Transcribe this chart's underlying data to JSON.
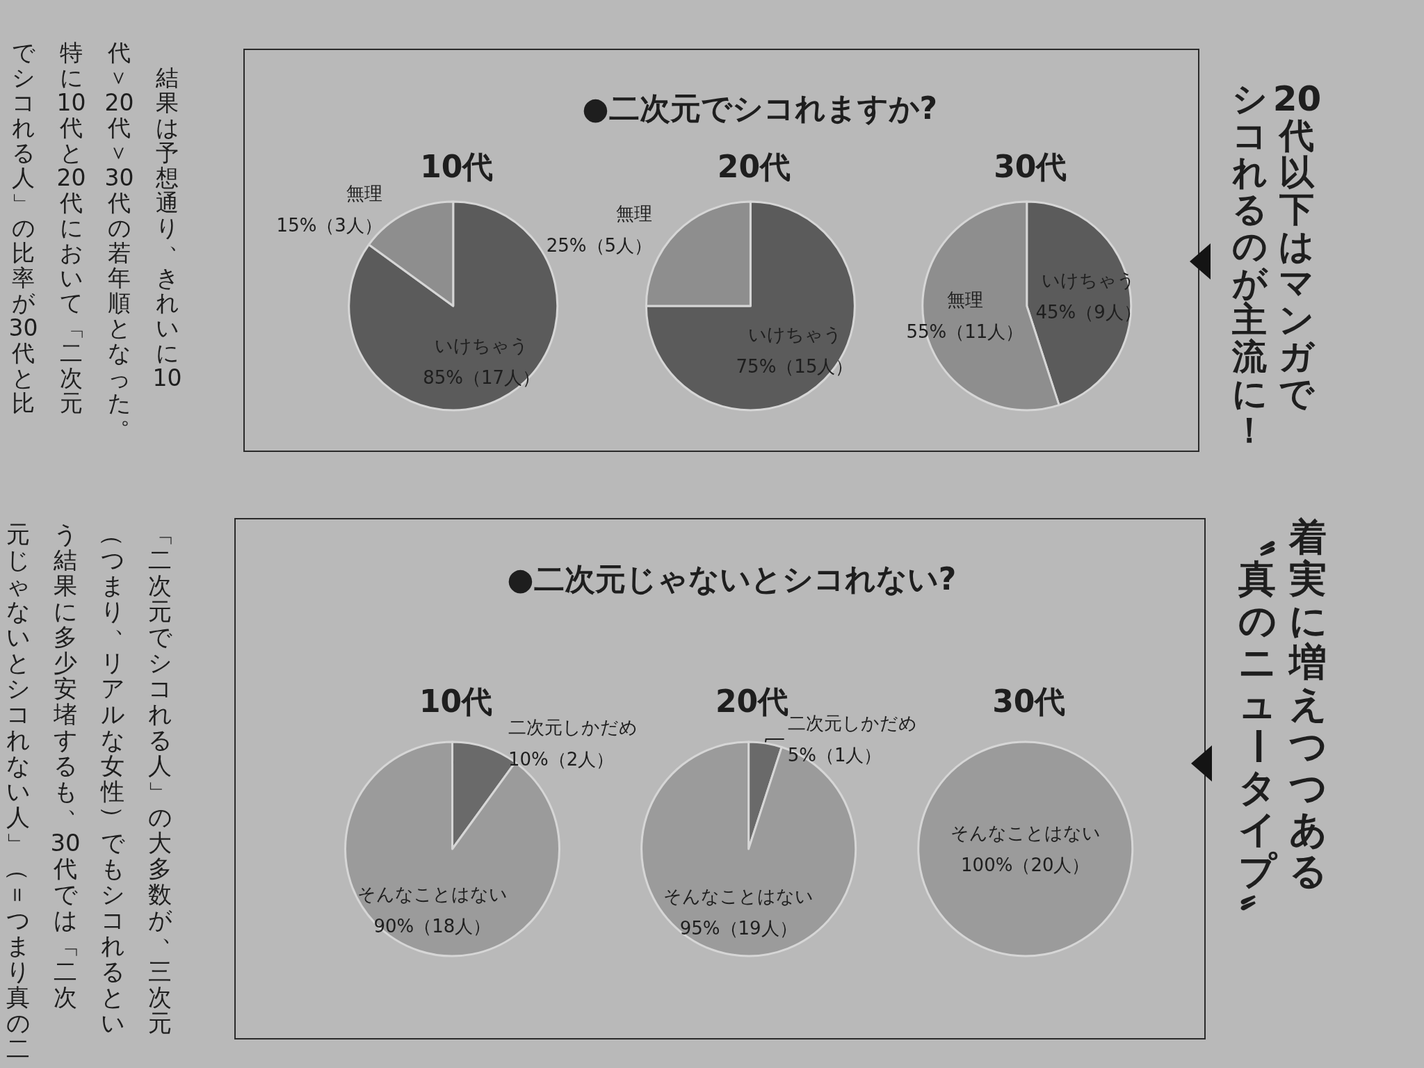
{
  "chart_data": [
    {
      "type": "pie",
      "title": "●二次元でシコれますか?",
      "annotations": [
        "20代以下はマンガで",
        "シコれるのが主流に！",
        "結果は予想通り、きれいに10",
        "代＞20代＞30代の若年順となった。",
        "特に10代と20代において「二次元",
        "でシコれる人」の比率が30代と比"
      ],
      "categories": [
        "いけちゃう",
        "無理"
      ],
      "colors": [
        "#5b5b5b",
        "#8e8e8e"
      ],
      "series": [
        {
          "name": "10代",
          "values": [
            85,
            15
          ],
          "value_labels": [
            "85%（17人）",
            "15%（3人）"
          ]
        },
        {
          "name": "20代",
          "values": [
            75,
            25
          ],
          "value_labels": [
            "75%（15人）",
            "25%（5人）"
          ]
        },
        {
          "name": "30代",
          "values": [
            45,
            55
          ],
          "value_labels": [
            "45%（9人）",
            "55%（11人）"
          ]
        }
      ]
    },
    {
      "type": "pie",
      "title": "●二次元じゃないとシコれない?",
      "annotations": [
        "着実に増えつつある",
        "〝真のニュータイプ〟",
        "「二次元でシコれる人」の大多数が、三次元",
        "（つまり、リアルな女性）でもシコれるとい",
        "う結果に多少安堵するも、30代では「二次",
        "元じゃないとシコれない人」（＝つまり真の二"
      ],
      "categories": [
        "二次元しかだめ",
        "そんなことはない"
      ],
      "colors": [
        "#6a6a6a",
        "#9b9b9b"
      ],
      "series": [
        {
          "name": "10代",
          "values": [
            10,
            90
          ],
          "value_labels": [
            "10%（2人）",
            "90%（18人）"
          ]
        },
        {
          "name": "20代",
          "values": [
            5,
            95
          ],
          "value_labels": [
            "5%（1人）",
            "95%（19人）"
          ]
        },
        {
          "name": "30代",
          "values": [
            0,
            100
          ],
          "value_labels": [
            null,
            "100%（20人）"
          ]
        }
      ]
    }
  ]
}
